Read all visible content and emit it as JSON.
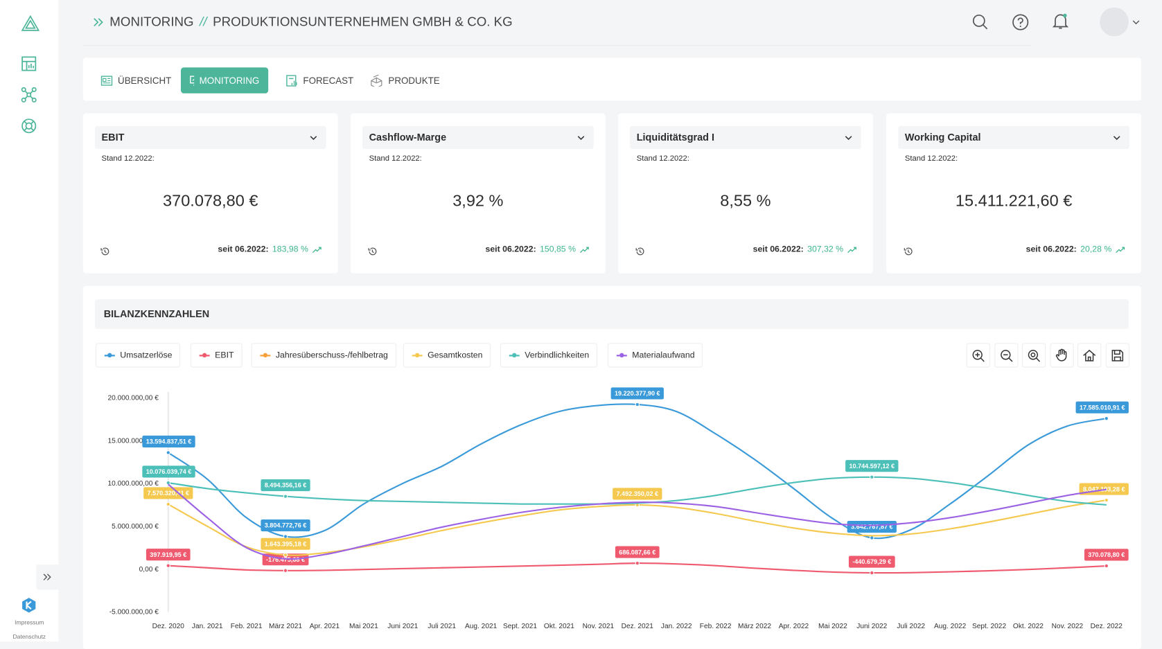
{
  "header": {
    "breadcrumb": [
      "MONITORING",
      "PRODUKTIONSUNTERNEHMEN GMBH & CO. KG"
    ],
    "separator": "//"
  },
  "sidebar": {
    "links": [
      "Impressum",
      "Datenschutz"
    ]
  },
  "tabs": [
    "ÜBERSICHT",
    "MONITORING",
    "FORECAST",
    "PRODUKTE"
  ],
  "kpis": [
    {
      "title": "EBIT",
      "stand": "Stand 12.2022:",
      "value": "370.078,80 €",
      "since": "seit 06.2022:",
      "change": "183,98 %"
    },
    {
      "title": "Cashflow-Marge",
      "stand": "Stand 12.2022:",
      "value": "3,92 %",
      "since": "seit 06.2022:",
      "change": "150,85 %"
    },
    {
      "title": "Liquiditätsgrad I",
      "stand": "Stand 12.2022:",
      "value": "8,55 %",
      "since": "seit 06.2022:",
      "change": "307,32 %"
    },
    {
      "title": "Working Capital",
      "stand": "Stand 12.2022:",
      "value": "15.411.221,60 €",
      "since": "seit 06.2022:",
      "change": "20,28 %"
    }
  ],
  "chart_data": {
    "type": "line",
    "title": "BILANZKENNZAHLEN",
    "categories": [
      "Dez. 2020",
      "Jan. 2021",
      "Feb. 2021",
      "März 2021",
      "Apr. 2021",
      "Mai 2021",
      "Juni 2021",
      "Juli 2021",
      "Aug. 2021",
      "Sept. 2021",
      "Okt. 2021",
      "Nov. 2021",
      "Dez. 2021",
      "Jan. 2022",
      "Feb. 2022",
      "März 2022",
      "Apr. 2022",
      "Mai 2022",
      "Juni 2022",
      "Juli 2022",
      "Aug. 2022",
      "Sept. 2022",
      "Okt. 2022",
      "Nov. 2022",
      "Dez. 2022"
    ],
    "series": [
      {
        "name": "Umsatzerlöse",
        "color": "#3a9ad9",
        "values": [
          13594837.51,
          10500000,
          6000000,
          3804772.76,
          4500000,
          7600000,
          10000000,
          12000000,
          14600000,
          16800000,
          18400000,
          19100000,
          19220377.9,
          18400000,
          15800000,
          12800000,
          9400000,
          5900000,
          3642767.87,
          4600000,
          7600000,
          11000000,
          14500000,
          16700000,
          17585010.91
        ],
        "value_labels": [
          "13.594.837,51 €",
          null,
          null,
          "3.804.772,76 €",
          null,
          null,
          null,
          null,
          null,
          null,
          null,
          null,
          "19.220.377,90 €",
          null,
          null,
          null,
          null,
          null,
          "3.642.767,87 €",
          null,
          null,
          null,
          null,
          null,
          "17.585.010,91 €"
        ]
      },
      {
        "name": "EBIT",
        "color": "#ef5a6f",
        "values": [
          397919.95,
          150000,
          -100000,
          -176475.68,
          -150000,
          -50000,
          50000,
          150000,
          250000,
          350000,
          450000,
          560000,
          686087.66,
          600000,
          400000,
          100000,
          -150000,
          -350000,
          -440679.29,
          -420000,
          -320000,
          -200000,
          -50000,
          150000,
          370078.8
        ],
        "value_labels": [
          "397.919,95 €",
          null,
          null,
          "-176.475,68 €",
          null,
          null,
          null,
          null,
          null,
          null,
          null,
          null,
          "686.087,66 €",
          null,
          null,
          null,
          null,
          null,
          "-440.679,29 €",
          null,
          null,
          null,
          null,
          null,
          "370.078,80 €"
        ]
      },
      {
        "name": "Jahresüberschuss-/fehlbetrag",
        "color": "#f5a03a",
        "values": [
          null,
          null,
          null,
          null,
          null,
          null,
          null,
          null,
          null,
          null,
          null,
          null,
          null,
          null,
          null,
          null,
          null,
          null,
          null,
          null,
          null,
          null,
          null,
          null,
          null
        ]
      },
      {
        "name": "Gesamtkosten",
        "color": "#f5c94f",
        "values": [
          7570320.41,
          5000000,
          2600000,
          1643395.18,
          1900000,
          2600000,
          3500000,
          4500000,
          5400000,
          6200000,
          6900000,
          7300000,
          7492350.02,
          7200000,
          6500000,
          5600000,
          4800000,
          4200000,
          3900000,
          4100000,
          4700000,
          5500000,
          6400000,
          7300000,
          8047193.28
        ],
        "value_labels": [
          "7.570.320,41 €",
          null,
          null,
          "1.643.395,18 €",
          null,
          null,
          null,
          null,
          null,
          null,
          null,
          null,
          "7.492.350,02 €",
          null,
          null,
          null,
          null,
          null,
          null,
          null,
          null,
          null,
          null,
          null,
          "8.047.193,28 €"
        ]
      },
      {
        "name": "Verbindlichkeiten",
        "color": "#4bbfb8",
        "values": [
          10076039.74,
          9400000,
          8900000,
          8494356.16,
          8200000,
          8000000,
          7900000,
          7800000,
          7700000,
          7600000,
          7600000,
          7600000,
          7700000,
          8000000,
          8600000,
          9400000,
          10100000,
          10600000,
          10744597.12,
          10600000,
          10100000,
          9400000,
          8600000,
          7900000,
          7500000
        ],
        "value_labels": [
          "10.076.039,74 €",
          null,
          null,
          "8.494.356,16 €",
          null,
          null,
          null,
          null,
          null,
          null,
          null,
          null,
          null,
          null,
          null,
          null,
          null,
          null,
          "10.744.597,12 €",
          null,
          null,
          null,
          null,
          null,
          null
        ]
      },
      {
        "name": "Materialaufwand",
        "color": "#9b62e3",
        "values": [
          9900000,
          6000000,
          2500000,
          1200000,
          1700000,
          2700000,
          3800000,
          4900000,
          5800000,
          6600000,
          7200000,
          7600000,
          7800000,
          7700000,
          7300000,
          6600000,
          5900000,
          5300000,
          5100000,
          5400000,
          6000000,
          6800000,
          7700000,
          8600000,
          9300000
        ]
      }
    ],
    "ylim": [
      -5000000,
      20000000
    ],
    "yticks": [
      {
        "value": -5000000,
        "label": "-5.000.000,00 €"
      },
      {
        "value": 0,
        "label": "0,00 €"
      },
      {
        "value": 5000000,
        "label": "5.000.000,00 €"
      },
      {
        "value": 10000000,
        "label": "10.000.000,00 €"
      },
      {
        "value": 15000000,
        "label": "15.000.000,00 €"
      },
      {
        "value": 20000000,
        "label": "20.000.000,00 €"
      }
    ],
    "grid": false
  }
}
